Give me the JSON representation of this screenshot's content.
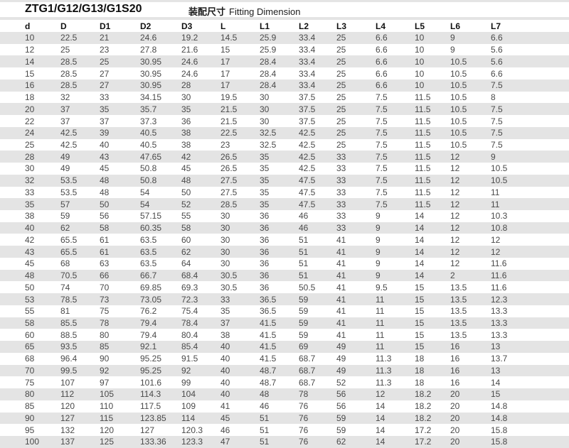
{
  "header": {
    "title": "ZTG1/G12/G13/G1S20",
    "subtitle_cn": "装配尺寸",
    "subtitle_en": "Fitting Dimension"
  },
  "colors": {
    "stripe": "#e4e4e4",
    "data_text": "#4a4a4a",
    "header_text": "#111111",
    "background": "#ffffff"
  },
  "table": {
    "columns": [
      "d",
      "D",
      "D1",
      "D2",
      "D3",
      "L",
      "L1",
      "L2",
      "L3",
      "L4",
      "L5",
      "L6",
      "L7"
    ],
    "rows": [
      [
        "10",
        "22.5",
        "21",
        "24.6",
        "19.2",
        "14.5",
        "25.9",
        "33.4",
        "25",
        "6.6",
        "10",
        "9",
        "6.6"
      ],
      [
        "12",
        "25",
        "23",
        "27.8",
        "21.6",
        "15",
        "25.9",
        "33.4",
        "25",
        "6.6",
        "10",
        "9",
        "5.6"
      ],
      [
        "14",
        "28.5",
        "25",
        "30.95",
        "24.6",
        "17",
        "28.4",
        "33.4",
        "25",
        "6.6",
        "10",
        "10.5",
        "5.6"
      ],
      [
        "15",
        "28.5",
        "27",
        "30.95",
        "24.6",
        "17",
        "28.4",
        "33.4",
        "25",
        "6.6",
        "10",
        "10.5",
        "6.6"
      ],
      [
        "16",
        "28.5",
        "27",
        "30.95",
        "28",
        "17",
        "28.4",
        "33.4",
        "25",
        "6.6",
        "10",
        "10.5",
        "7.5"
      ],
      [
        "18",
        "32",
        "33",
        "34.15",
        "30",
        "19.5",
        "30",
        "37.5",
        "25",
        "7.5",
        "11.5",
        "10.5",
        "8"
      ],
      [
        "20",
        "37",
        "35",
        "35.7",
        "35",
        "21.5",
        "30",
        "37.5",
        "25",
        "7.5",
        "11.5",
        "10.5",
        "7.5"
      ],
      [
        "22",
        "37",
        "37",
        "37.3",
        "36",
        "21.5",
        "30",
        "37.5",
        "25",
        "7.5",
        "11.5",
        "10.5",
        "7.5"
      ],
      [
        "24",
        "42.5",
        "39",
        "40.5",
        "38",
        "22.5",
        "32.5",
        "42.5",
        "25",
        "7.5",
        "11.5",
        "10.5",
        "7.5"
      ],
      [
        "25",
        "42.5",
        "40",
        "40.5",
        "38",
        "23",
        "32.5",
        "42.5",
        "25",
        "7.5",
        "11.5",
        "10.5",
        "7.5"
      ],
      [
        "28",
        "49",
        "43",
        "47.65",
        "42",
        "26.5",
        "35",
        "42.5",
        "33",
        "7.5",
        "11.5",
        "12",
        "9"
      ],
      [
        "30",
        "49",
        "45",
        "50.8",
        "45",
        "26.5",
        "35",
        "42.5",
        "33",
        "7.5",
        "11.5",
        "12",
        "10.5"
      ],
      [
        "32",
        "53.5",
        "48",
        "50.8",
        "48",
        "27.5",
        "35",
        "47.5",
        "33",
        "7.5",
        "11.5",
        "12",
        "10.5"
      ],
      [
        "33",
        "53.5",
        "48",
        "54",
        "50",
        "27.5",
        "35",
        "47.5",
        "33",
        "7.5",
        "11.5",
        "12",
        "11"
      ],
      [
        "35",
        "57",
        "50",
        "54",
        "52",
        "28.5",
        "35",
        "47.5",
        "33",
        "7.5",
        "11.5",
        "12",
        "11"
      ],
      [
        "38",
        "59",
        "56",
        "57.15",
        "55",
        "30",
        "36",
        "46",
        "33",
        "9",
        "14",
        "12",
        "10.3"
      ],
      [
        "40",
        "62",
        "58",
        "60.35",
        "58",
        "30",
        "36",
        "46",
        "33",
        "9",
        "14",
        "12",
        "10.8"
      ],
      [
        "42",
        "65.5",
        "61",
        "63.5",
        "60",
        "30",
        "36",
        "51",
        "41",
        "9",
        "14",
        "12",
        "12"
      ],
      [
        "43",
        "65.5",
        "61",
        "63.5",
        "62",
        "30",
        "36",
        "51",
        "41",
        "9",
        "14",
        "12",
        "12"
      ],
      [
        "45",
        "68",
        "63",
        "63.5",
        "64",
        "30",
        "36",
        "51",
        "41",
        "9",
        "14",
        "12",
        "11.6"
      ],
      [
        "48",
        "70.5",
        "66",
        "66.7",
        "68.4",
        "30.5",
        "36",
        "51",
        "41",
        "9",
        "14",
        "2",
        "11.6"
      ],
      [
        "50",
        "74",
        "70",
        "69.85",
        "69.3",
        "30.5",
        "36",
        "50.5",
        "41",
        "9.5",
        "15",
        "13.5",
        "11.6"
      ],
      [
        "53",
        "78.5",
        "73",
        "73.05",
        "72.3",
        "33",
        "36.5",
        "59",
        "41",
        "11",
        "15",
        "13.5",
        "12.3"
      ],
      [
        "55",
        "81",
        "75",
        "76.2",
        "75.4",
        "35",
        "36.5",
        "59",
        "41",
        "11",
        "15",
        "13.5",
        "13.3"
      ],
      [
        "58",
        "85.5",
        "78",
        "79.4",
        "78.4",
        "37",
        "41.5",
        "59",
        "41",
        "11",
        "15",
        "13.5",
        "13.3"
      ],
      [
        "60",
        "88.5",
        "80",
        "79.4",
        "80.4",
        "38",
        "41.5",
        "59",
        "41",
        "11",
        "15",
        "13.5",
        "13.3"
      ],
      [
        "65",
        "93.5",
        "85",
        "92.1",
        "85.4",
        "40",
        "41.5",
        "69",
        "49",
        "11",
        "15",
        "16",
        "13"
      ],
      [
        "68",
        "96.4",
        "90",
        "95.25",
        "91.5",
        "40",
        "41.5",
        "68.7",
        "49",
        "11.3",
        "18",
        "16",
        "13.7"
      ],
      [
        "70",
        "99.5",
        "92",
        "95.25",
        "92",
        "40",
        "48.7",
        "68.7",
        "49",
        "11.3",
        "18",
        "16",
        "13"
      ],
      [
        "75",
        "107",
        "97",
        "101.6",
        "99",
        "40",
        "48.7",
        "68.7",
        "52",
        "11.3",
        "18",
        "16",
        "14"
      ],
      [
        "80",
        "112",
        "105",
        "114.3",
        "104",
        "40",
        "48",
        "78",
        "56",
        "12",
        "18.2",
        "20",
        "15"
      ],
      [
        "85",
        "120",
        "110",
        "117.5",
        "109",
        "41",
        "46",
        "76",
        "56",
        "14",
        "18.2",
        "20",
        "14.8"
      ],
      [
        "90",
        "127",
        "115",
        "123.85",
        "114",
        "45",
        "51",
        "76",
        "59",
        "14",
        "18.2",
        "20",
        "14.8"
      ],
      [
        "95",
        "132",
        "120",
        "127",
        "120.3",
        "46",
        "51",
        "76",
        "59",
        "14",
        "17.2",
        "20",
        "15.8"
      ],
      [
        "100",
        "137",
        "125",
        "133.36",
        "123.3",
        "47",
        "51",
        "76",
        "62",
        "14",
        "17.2",
        "20",
        "15.8"
      ]
    ]
  }
}
